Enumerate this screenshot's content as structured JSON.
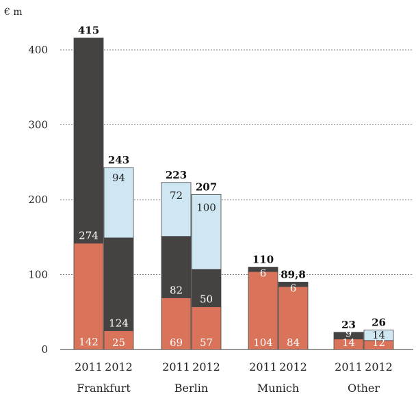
{
  "chart_data": {
    "type": "bar",
    "stacked": true,
    "unit_label": "€ m",
    "ylim": [
      0,
      400
    ],
    "yticks": [
      "0",
      "100",
      "200",
      "300",
      "400"
    ],
    "groups": [
      {
        "name": "Frankfurt",
        "bars": [
          {
            "year": "2011",
            "total_label": "415",
            "segments": [
              142,
              274,
              null
            ],
            "segment_labels": [
              "142",
              "274",
              ""
            ]
          },
          {
            "year": "2012",
            "total_label": "243",
            "segments": [
              25,
              124,
              94
            ],
            "segment_labels": [
              "25",
              "124",
              "94"
            ]
          }
        ]
      },
      {
        "name": "Berlin",
        "bars": [
          {
            "year": "2011",
            "total_label": "223",
            "segments": [
              69,
              82,
              72
            ],
            "segment_labels": [
              "69",
              "82",
              "72"
            ]
          },
          {
            "year": "2012",
            "total_label": "207",
            "segments": [
              57,
              50,
              100
            ],
            "segment_labels": [
              "57",
              "50",
              "100"
            ]
          }
        ]
      },
      {
        "name": "Munich",
        "bars": [
          {
            "year": "2011",
            "total_label": "110",
            "segments": [
              104,
              6,
              0
            ],
            "segment_labels": [
              "104",
              "6",
              ""
            ]
          },
          {
            "year": "2012",
            "total_label": "89,8",
            "segments": [
              84,
              6,
              0
            ],
            "segment_labels": [
              "84",
              "6",
              ""
            ]
          }
        ]
      },
      {
        "name": "Other",
        "bars": [
          {
            "year": "2011",
            "total_label": "23",
            "segments": [
              14,
              9,
              0
            ],
            "segment_labels": [
              "14",
              "9",
              ""
            ]
          },
          {
            "year": "2012",
            "total_label": "26",
            "segments": [
              12,
              0,
              14
            ],
            "segment_labels": [
              "12",
              "",
              "14"
            ]
          }
        ]
      }
    ],
    "colors": {
      "bottom": "#d9735a",
      "middle": "#454341",
      "top": "#cfe6f3",
      "bottom_text": "#ffffff",
      "middle_text": "#ffffff",
      "top_text": "#222222"
    }
  }
}
